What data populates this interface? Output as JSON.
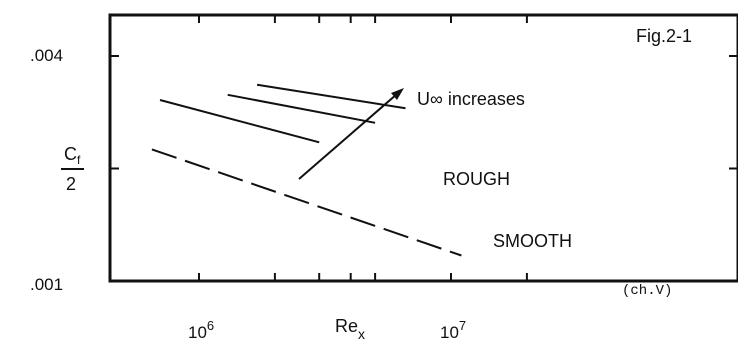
{
  "chart_data": {
    "type": "line",
    "figure_label": "Fig.2-1",
    "ylabel_num": "C",
    "ylabel_sub": "f",
    "ylabel_den": "2",
    "xlabel_main": "Re",
    "xlabel_sub": "x",
    "xscale": "log",
    "yscale": "log",
    "xlim": [
      500000,
      30000000
    ],
    "ylim": [
      0.001,
      0.005
    ],
    "grid": false,
    "x_ticks": [
      {
        "value": 1000000,
        "base": "10",
        "exp": "6"
      },
      {
        "value": 10000000,
        "base": "10",
        "exp": "7"
      }
    ],
    "x_minor_ticks": [
      2000000,
      3000000,
      4000000,
      5000000,
      20000000
    ],
    "y_ticks": [
      {
        "value": 0.001,
        "label": ".001"
      },
      {
        "value": 0.004,
        "label": ".004"
      }
    ],
    "y_minor_ticks": [
      0.002
    ],
    "series": [
      {
        "name": "ROUGH",
        "style": "solid",
        "x": [
          700000,
          3000000
        ],
        "y": [
          0.00305,
          0.00235
        ]
      },
      {
        "name": "",
        "style": "solid",
        "x": [
          1300000,
          5000000
        ],
        "y": [
          0.00315,
          0.00265
        ]
      },
      {
        "name": "",
        "style": "solid",
        "x": [
          1700000,
          6600000
        ],
        "y": [
          0.00335,
          0.0029
        ]
      },
      {
        "name": "SMOOTH",
        "style": "dashed",
        "x": [
          650000,
          11000000
        ],
        "y": [
          0.00225,
          0.00117
        ]
      }
    ],
    "annotations": {
      "uinf_text": "U∞ increases",
      "rough_text": "ROUGH",
      "smooth_text": "SMOOTH",
      "ref_text": "(ch.V)"
    }
  }
}
